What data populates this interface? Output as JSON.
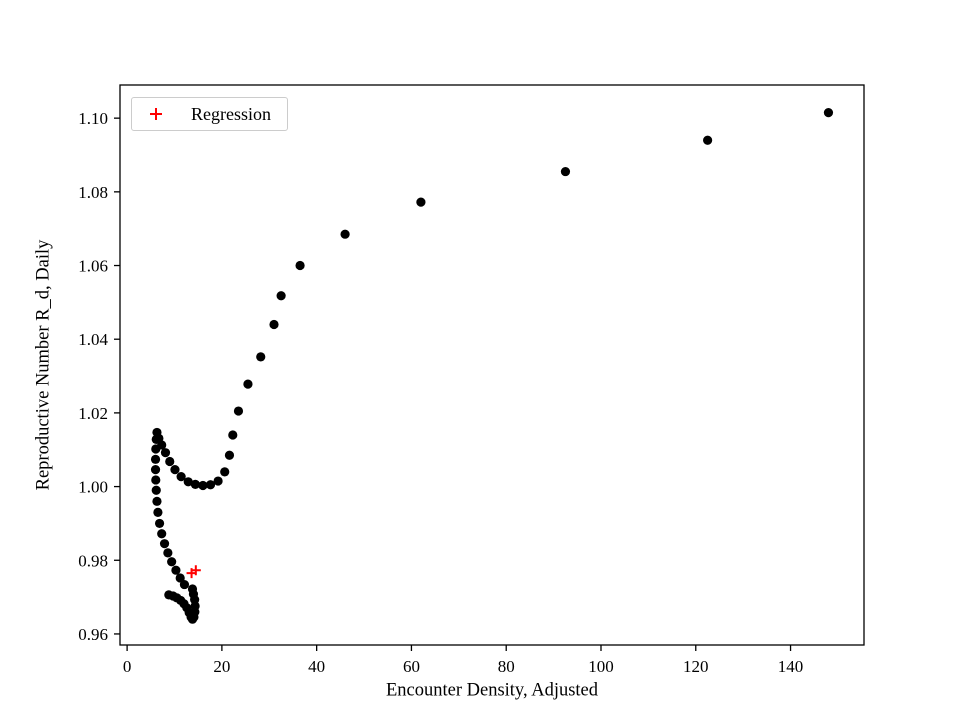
{
  "figure": {
    "background": "#ffffff"
  },
  "chart_data": {
    "type": "scatter",
    "title": "",
    "xlabel": "Encounter Density, Adjusted",
    "ylabel": "Reproductive Number R_d, Daily",
    "xlim": [
      -1.5,
      155.5
    ],
    "ylim": [
      0.957,
      1.109
    ],
    "xticks": [
      0,
      20,
      40,
      60,
      80,
      100,
      120,
      140
    ],
    "xtick_labels": [
      "0",
      "20",
      "40",
      "60",
      "80",
      "100",
      "120",
      "140"
    ],
    "yticks": [
      0.96,
      0.98,
      1.0,
      1.02,
      1.04,
      1.06,
      1.08,
      1.1
    ],
    "ytick_labels": [
      "0.96",
      "0.98",
      "1.00",
      "1.02",
      "1.04",
      "1.06",
      "1.08",
      "1.10"
    ],
    "grid": false,
    "legend": {
      "position": "upper-left",
      "entries": [
        {
          "label": "Regression",
          "marker": "plus",
          "color": "#ff0000"
        }
      ]
    },
    "series": [
      {
        "name": "r_d_trajectory",
        "marker": "circle",
        "color": "#000000",
        "points": [
          [
            148,
            1.1015
          ],
          [
            122.5,
            1.094
          ],
          [
            92.5,
            1.0855
          ],
          [
            62,
            1.0772
          ],
          [
            46,
            1.0685
          ],
          [
            36.5,
            1.06
          ],
          [
            32.5,
            1.0518
          ],
          [
            31,
            1.044
          ],
          [
            28.2,
            1.0352
          ],
          [
            25.5,
            1.0278
          ],
          [
            23.5,
            1.0205
          ],
          [
            22.3,
            1.014
          ],
          [
            21.6,
            1.0085
          ],
          [
            20.6,
            1.004
          ],
          [
            19.2,
            1.0015
          ],
          [
            17.6,
            1.0005
          ],
          [
            16.0,
            1.0003
          ],
          [
            14.4,
            1.0006
          ],
          [
            12.9,
            1.0013
          ],
          [
            11.4,
            1.0027
          ],
          [
            10.1,
            1.0046
          ],
          [
            9.0,
            1.0068
          ],
          [
            8.1,
            1.0092
          ],
          [
            7.3,
            1.0113
          ],
          [
            6.7,
            1.0131
          ],
          [
            6.3,
            1.0147
          ],
          [
            6.15,
            1.0128
          ],
          [
            6.05,
            1.0102
          ],
          [
            6.0,
            1.0074
          ],
          [
            6.0,
            1.0046
          ],
          [
            6.05,
            1.0018
          ],
          [
            6.15,
            0.999
          ],
          [
            6.3,
            0.996
          ],
          [
            6.5,
            0.993
          ],
          [
            6.85,
            0.99
          ],
          [
            7.3,
            0.9872
          ],
          [
            7.9,
            0.9845
          ],
          [
            8.6,
            0.982
          ],
          [
            9.4,
            0.9796
          ],
          [
            10.3,
            0.9773
          ],
          [
            11.2,
            0.9752
          ],
          [
            12.1,
            0.9734
          ],
          [
            8.8,
            0.9706
          ],
          [
            9.7,
            0.9703
          ],
          [
            10.5,
            0.9698
          ],
          [
            11.3,
            0.9691
          ],
          [
            12.0,
            0.9682
          ],
          [
            12.6,
            0.9671
          ],
          [
            13.1,
            0.9658
          ],
          [
            13.5,
            0.9646
          ],
          [
            13.8,
            0.964
          ],
          [
            14.1,
            0.9646
          ],
          [
            14.3,
            0.966
          ],
          [
            14.35,
            0.9676
          ],
          [
            14.25,
            0.9693
          ],
          [
            14.0,
            0.9708
          ],
          [
            13.8,
            0.9722
          ]
        ]
      },
      {
        "name": "Regression",
        "marker": "plus",
        "color": "#ff0000",
        "points": [
          [
            13.6,
            0.9765
          ],
          [
            14.5,
            0.9773
          ]
        ]
      }
    ]
  }
}
